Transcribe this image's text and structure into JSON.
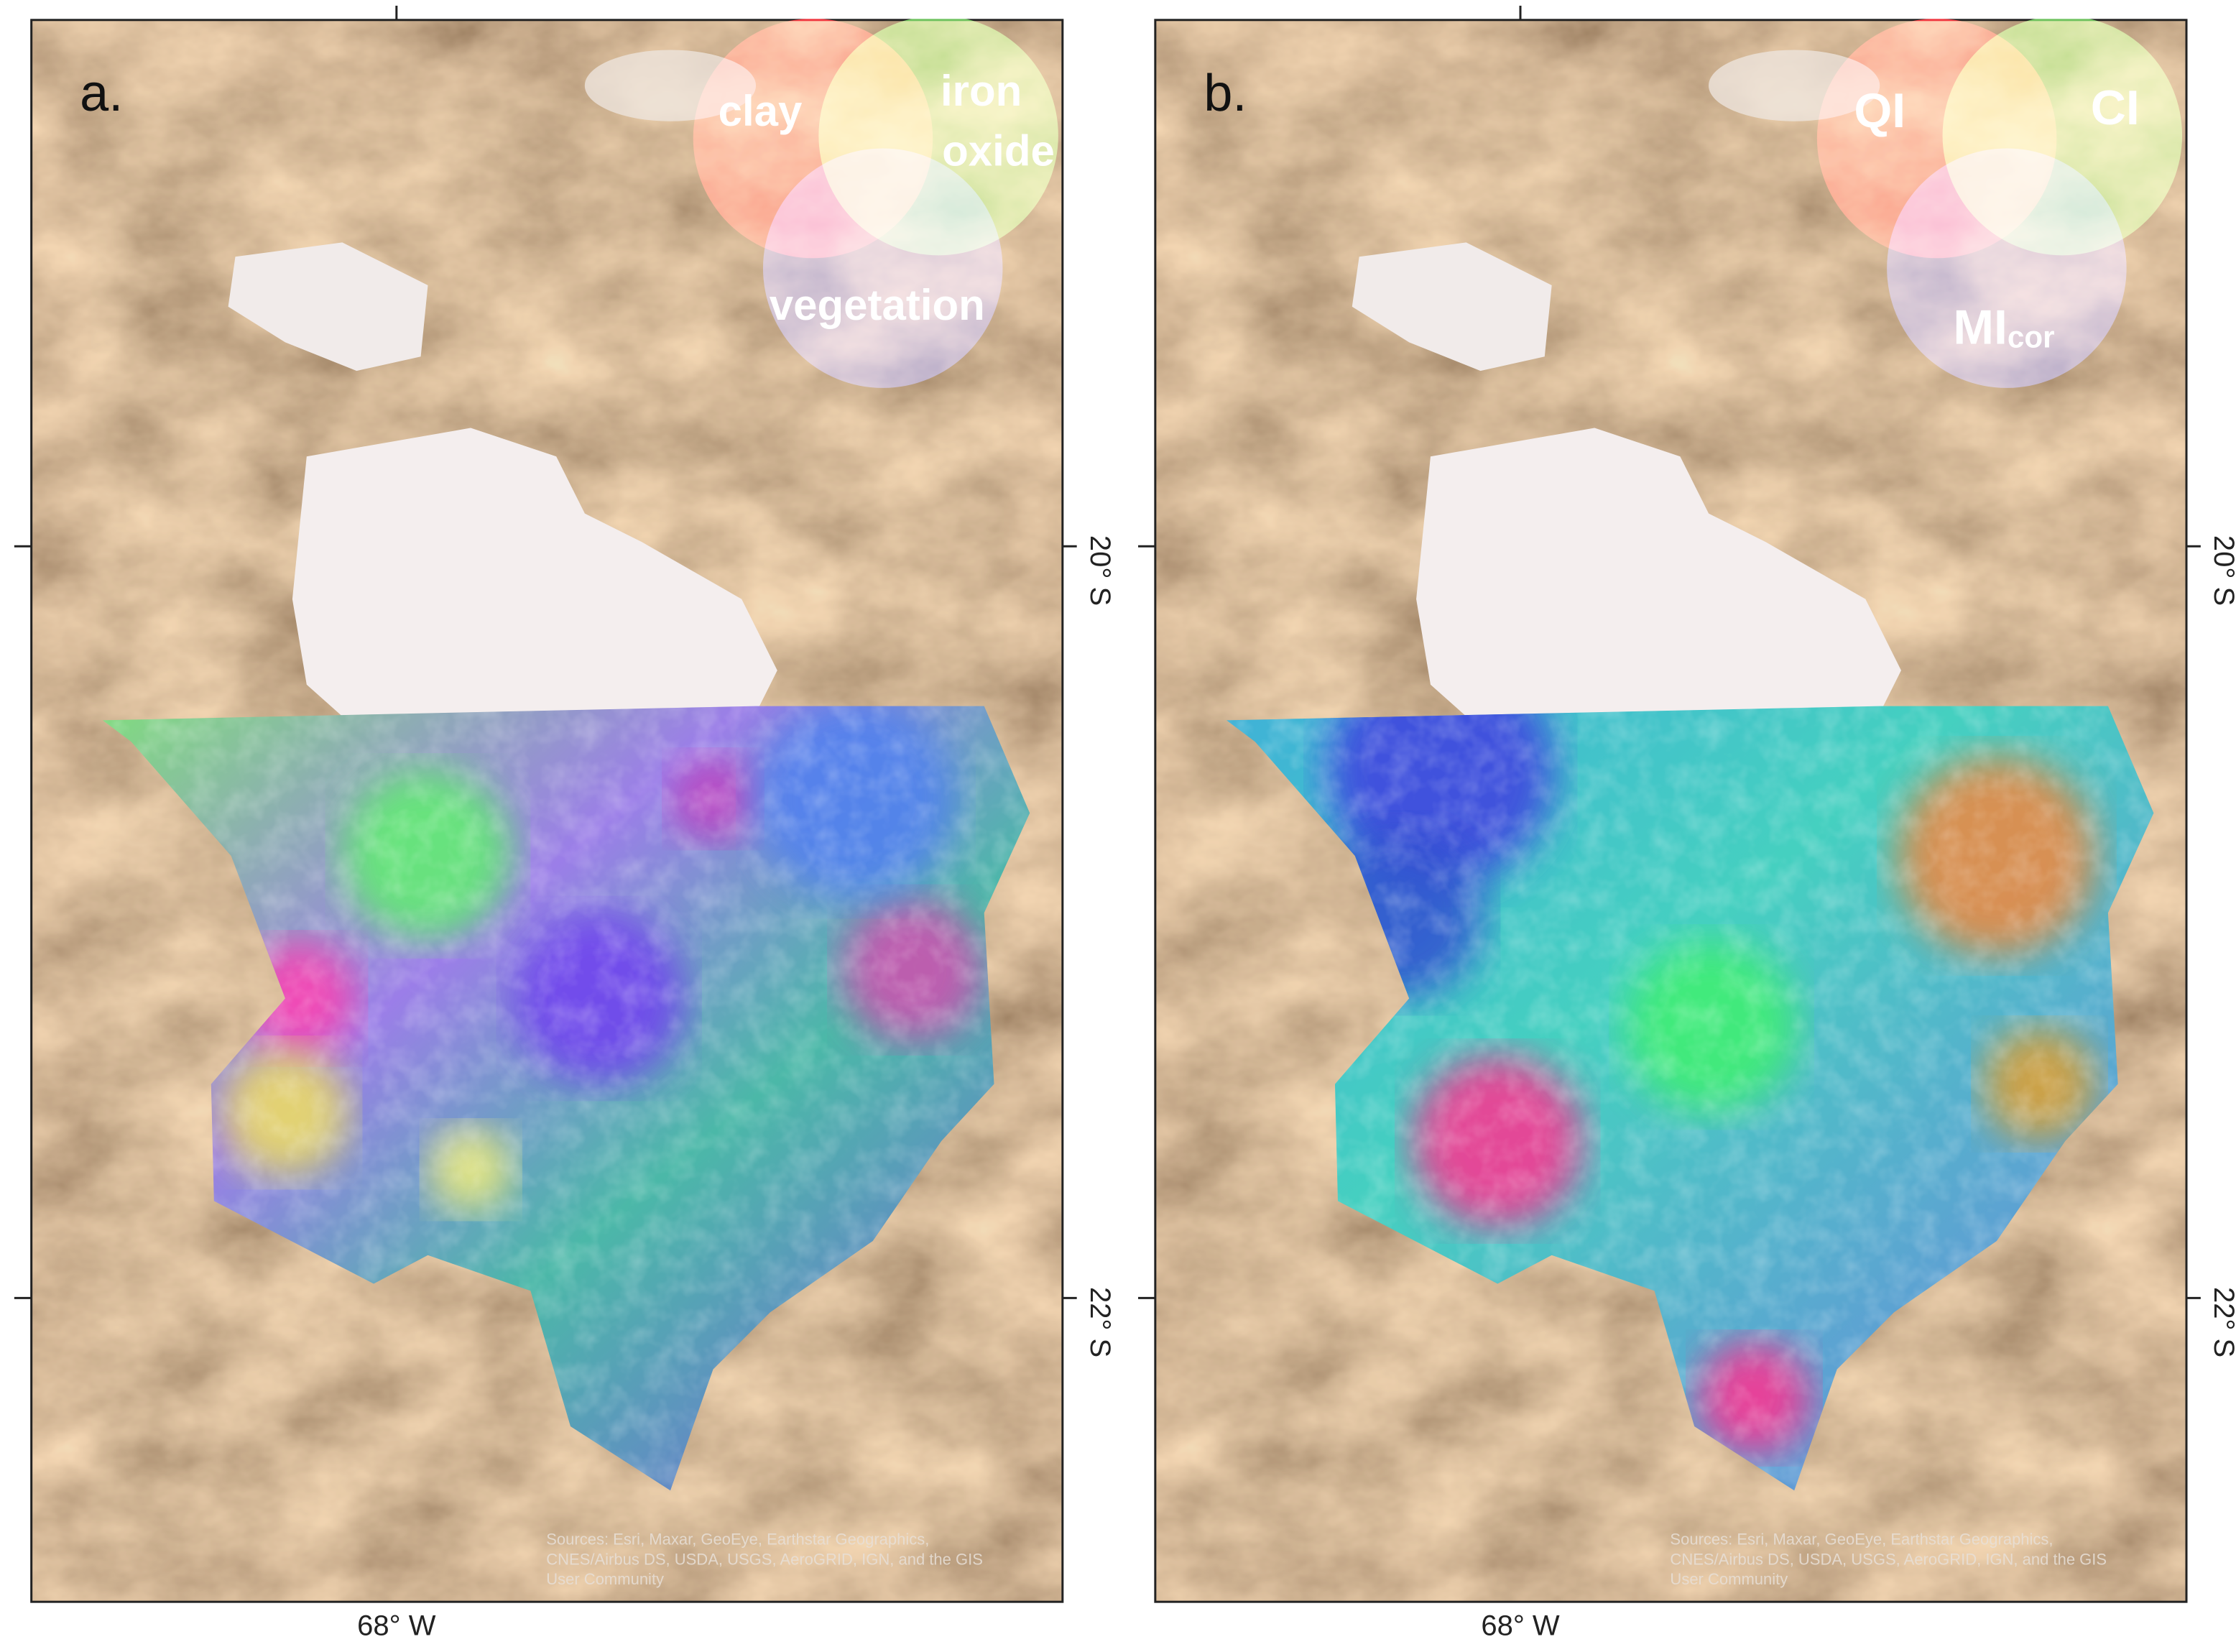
{
  "panels": [
    {
      "label": "a.",
      "legend": [
        {
          "lines": [
            "clay"
          ]
        },
        {
          "lines": [
            "iron",
            "oxide"
          ]
        },
        {
          "lines": [
            "vegetation"
          ]
        }
      ],
      "x_label": "68° W",
      "y_labels": [
        "20° S",
        "22° S"
      ],
      "attribution": [
        "Sources: Esri, Maxar, GeoEye, Earthstar Geographics,",
        "CNES/Airbus DS, USDA, USGS, AeroGRID, IGN, and the GIS",
        "User Community"
      ]
    },
    {
      "label": "b.",
      "legend": [
        {
          "lines": [
            "QI"
          ]
        },
        {
          "lines": [
            "CI"
          ]
        },
        {
          "lines": [
            "MI"
          ],
          "sub": "cor"
        }
      ],
      "x_label": "68° W",
      "y_labels": [
        "20° S",
        "22° S"
      ],
      "attribution": [
        "Sources: Esri, Maxar, GeoEye, Earthstar Geographics,",
        "CNES/Airbus DS, USDA, USGS, AeroGRID, IGN, and the GIS",
        "User Community"
      ]
    }
  ]
}
